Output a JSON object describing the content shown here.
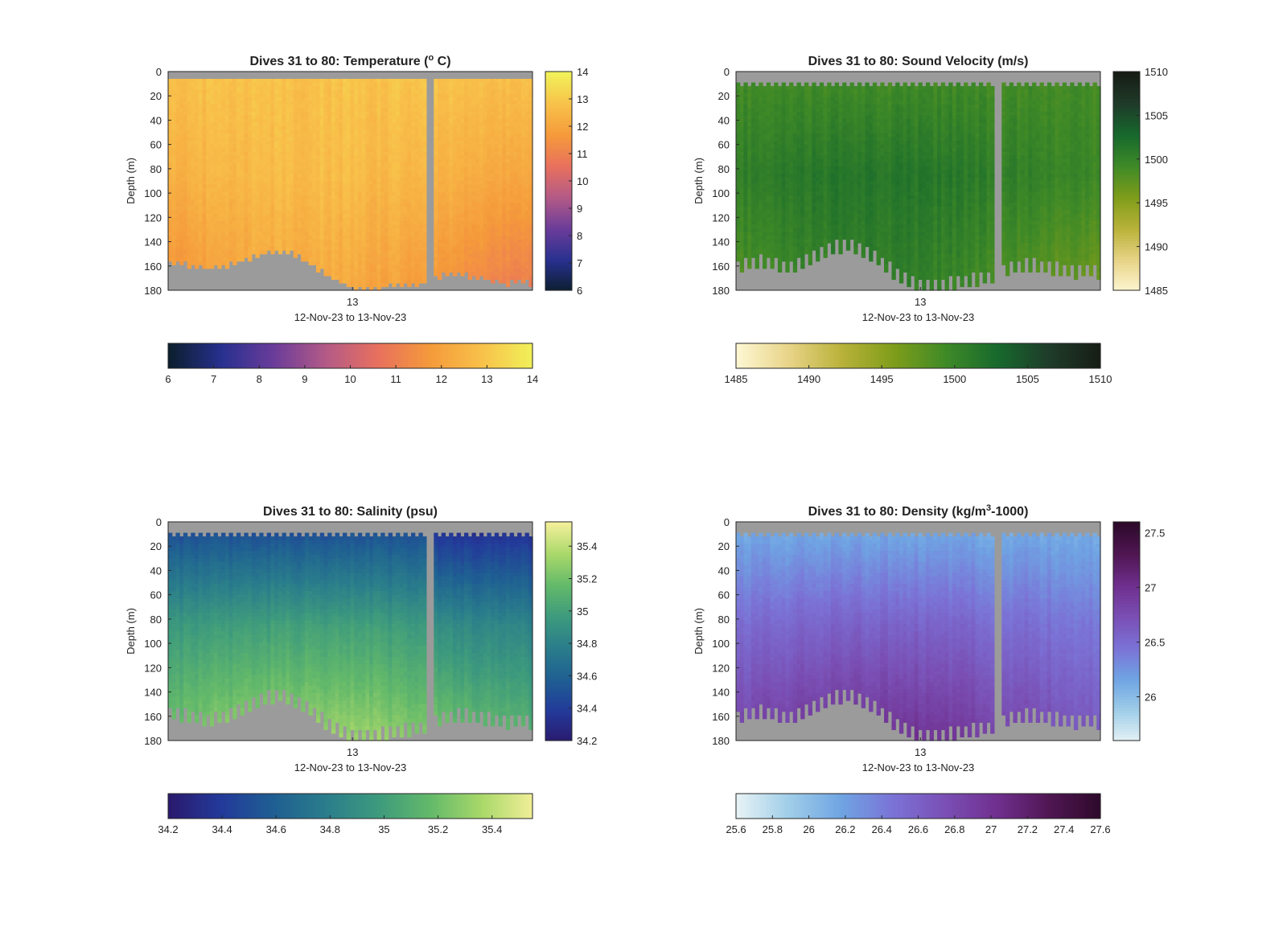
{
  "figure": {
    "xtick_label": "13",
    "x_range_label": "12-Nov-23 to 13-Nov-23",
    "ylabel": "Depth (m)",
    "depth_ticks": [
      0,
      20,
      40,
      60,
      80,
      100,
      120,
      140,
      160,
      180
    ]
  },
  "colors": {
    "missing_data": "#9b9b9b",
    "axis": "#262626"
  },
  "chart_data": [
    {
      "type": "heatmap",
      "id": "temperature",
      "title_main": "Dives 31 to 80: Temperature (",
      "title_sup": "o",
      "title_tail": " C)",
      "variable": "Temperature",
      "ylim": [
        180,
        0
      ],
      "x_dive_range": [
        31,
        80
      ],
      "gap_between_dives": true,
      "surface_gap_depth": 5,
      "colorbar": {
        "range": [
          6,
          14
        ],
        "ticks": [
          "6",
          "7",
          "8",
          "9",
          "10",
          "11",
          "12",
          "13",
          "14"
        ],
        "tick_values": [
          6,
          7,
          8,
          9,
          10,
          11,
          12,
          13,
          14
        ],
        "stops": [
          "#0b1f2e",
          "#28308f",
          "#6a3c9a",
          "#b35a87",
          "#e8705e",
          "#f59a3b",
          "#f8c14a",
          "#f1f25a"
        ]
      },
      "profile": {
        "surface": 12.9,
        "mid": 12.4,
        "bottom": 11.6
      },
      "bottom_depth_profile": [
        156,
        158,
        160,
        162,
        160,
        158,
        155,
        151,
        148,
        147,
        150,
        156,
        163,
        170,
        175,
        178,
        178,
        177,
        176,
        175,
        174,
        172,
        166,
        166,
        168,
        170,
        172,
        174,
        173,
        174
      ]
    },
    {
      "type": "heatmap",
      "id": "sound_velocity",
      "title_main": "Dives 31 to 80: Sound Velocity (m/s)",
      "variable": "Sound Velocity",
      "ylim": [
        180,
        0
      ],
      "x_dive_range": [
        31,
        80
      ],
      "gap_between_dives": true,
      "surface_gap_depth": 12,
      "colorbar": {
        "range": [
          1485,
          1510
        ],
        "ticks": [
          "1485",
          "1490",
          "1495",
          "1500",
          "1505",
          "1510"
        ],
        "tick_values": [
          1485,
          1490,
          1495,
          1500,
          1505,
          1510
        ],
        "stops": [
          "#fdf6d2",
          "#e8d487",
          "#b9b23a",
          "#7f9d1a",
          "#3f8a27",
          "#17692d",
          "#1f3b2a",
          "#161c14"
        ]
      },
      "profile": {
        "surface": 1499.0,
        "mid": 1500.5,
        "bottom": 1498.5
      },
      "bottom_depth_profile": [
        160,
        157,
        155,
        158,
        160,
        157,
        152,
        148,
        143,
        142,
        146,
        152,
        160,
        167,
        172,
        175,
        174,
        173,
        172,
        170,
        168,
        166,
        160,
        158,
        158,
        160,
        162,
        164,
        163,
        164
      ]
    },
    {
      "type": "heatmap",
      "id": "salinity",
      "title_main": "Dives 31 to 80: Salinity (psu)",
      "variable": "Salinity",
      "ylim": [
        180,
        0
      ],
      "x_dive_range": [
        31,
        80
      ],
      "gap_between_dives": true,
      "surface_gap_depth": 12,
      "colorbar": {
        "range": [
          34.2,
          35.55
        ],
        "ticks": [
          "34.2",
          "34.4",
          "34.6",
          "34.8",
          "35",
          "35.2",
          "35.4"
        ],
        "tick_values": [
          34.2,
          34.4,
          34.6,
          34.8,
          35.0,
          35.2,
          35.4
        ],
        "stops": [
          "#2a1a6e",
          "#233a9a",
          "#1f5f92",
          "#2a7d8b",
          "#3d9a7d",
          "#63b96a",
          "#a9d86a",
          "#f3ef9a"
        ]
      },
      "profile": {
        "surface": 34.45,
        "mid": 34.95,
        "bottom": 35.2
      },
      "bottom_depth_profile": [
        156,
        158,
        160,
        162,
        160,
        157,
        152,
        148,
        143,
        142,
        146,
        152,
        160,
        167,
        172,
        175,
        174,
        173,
        172,
        170,
        168,
        166,
        160,
        158,
        158,
        160,
        162,
        164,
        163,
        164
      ]
    },
    {
      "type": "heatmap",
      "id": "density",
      "title_main": "Dives 31 to 80: Density (kg/m",
      "title_sup": "3",
      "title_tail": "-1000)",
      "variable": "Density",
      "ylim": [
        180,
        0
      ],
      "x_dive_range": [
        31,
        80
      ],
      "gap_between_dives": true,
      "surface_gap_depth": 12,
      "colorbar": {
        "range": [
          25.6,
          27.6
        ],
        "ticks": [
          "25.6",
          "25.8",
          "26",
          "26.2",
          "26.4",
          "26.6",
          "26.8",
          "27",
          "27.2",
          "27.4",
          "27.6"
        ],
        "tick_values": [
          25.6,
          25.8,
          26.0,
          26.2,
          26.4,
          26.6,
          26.8,
          27.0,
          27.2,
          27.4,
          27.6
        ],
        "side_ticks": [
          "26",
          "26.5",
          "27",
          "27.5"
        ],
        "side_tick_values": [
          26.0,
          26.5,
          27.0,
          27.5
        ],
        "stops": [
          "#e6f2f5",
          "#9fcde8",
          "#6fa4e3",
          "#7b72d6",
          "#7a4fb4",
          "#6f2f8e",
          "#4f1652",
          "#2d0a2a"
        ]
      },
      "profile": {
        "surface": 26.1,
        "mid": 26.5,
        "bottom": 26.8
      },
      "bottom_depth_profile": [
        160,
        157,
        155,
        158,
        160,
        157,
        152,
        148,
        143,
        142,
        146,
        152,
        160,
        167,
        172,
        175,
        174,
        173,
        172,
        170,
        168,
        166,
        160,
        158,
        158,
        160,
        162,
        164,
        163,
        164
      ]
    }
  ]
}
